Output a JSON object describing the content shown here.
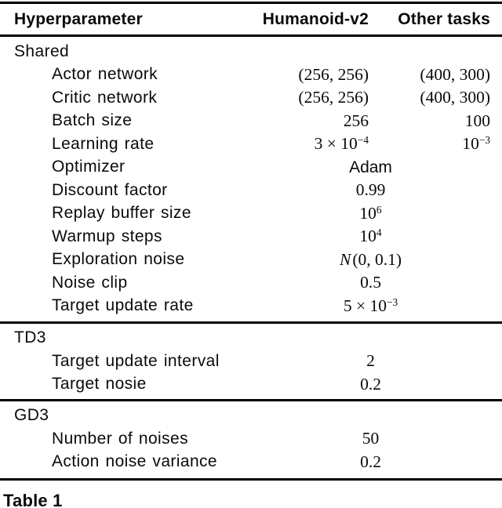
{
  "table": {
    "caption": "Table 1",
    "columns": [
      "Hyperparameter",
      "Humanoid-v2",
      "Other tasks"
    ],
    "sections": [
      {
        "title": "Shared",
        "rows": [
          {
            "label": "Actor network",
            "humanoid": "(256, 256)",
            "other": "(400, 300)"
          },
          {
            "label": "Critic network",
            "humanoid": "(256, 256)",
            "other": "(400, 300)"
          },
          {
            "label": "Batch size",
            "humanoid": "256",
            "other": "100"
          },
          {
            "label": "Learning rate",
            "humanoid": [
              {
                "t": "3 × 10"
              },
              {
                "t": "−4",
                "s": "sup"
              }
            ],
            "other": [
              {
                "t": "10"
              },
              {
                "t": "−3",
                "s": "sup"
              }
            ]
          },
          {
            "label": "Optimizer",
            "shared": [
              {
                "t": "Adam",
                "s": "sans"
              }
            ]
          },
          {
            "label": "Discount factor",
            "shared": "0.99"
          },
          {
            "label": "Replay buffer size",
            "shared": [
              {
                "t": "10"
              },
              {
                "t": "6",
                "s": "sup"
              }
            ]
          },
          {
            "label": "Warmup steps",
            "shared": [
              {
                "t": "10"
              },
              {
                "t": "4",
                "s": "sup"
              }
            ]
          },
          {
            "label": "Exploration noise",
            "shared": [
              {
                "t": "N",
                "s": "script"
              },
              {
                "t": "(0, 0.1)"
              }
            ]
          },
          {
            "label": "Noise clip",
            "shared": "0.5"
          },
          {
            "label": "Target update rate",
            "shared": [
              {
                "t": "5 × 10"
              },
              {
                "t": "−3",
                "s": "sup"
              }
            ]
          }
        ]
      },
      {
        "title": "TD3",
        "rows": [
          {
            "label": "Target update interval",
            "shared": "2"
          },
          {
            "label": "Target nosie",
            "shared": "0.2"
          }
        ]
      },
      {
        "title": "GD3",
        "rows": [
          {
            "label": "Number of noises",
            "shared": "50"
          },
          {
            "label": "Action noise variance",
            "shared": "0.2"
          }
        ]
      }
    ]
  }
}
